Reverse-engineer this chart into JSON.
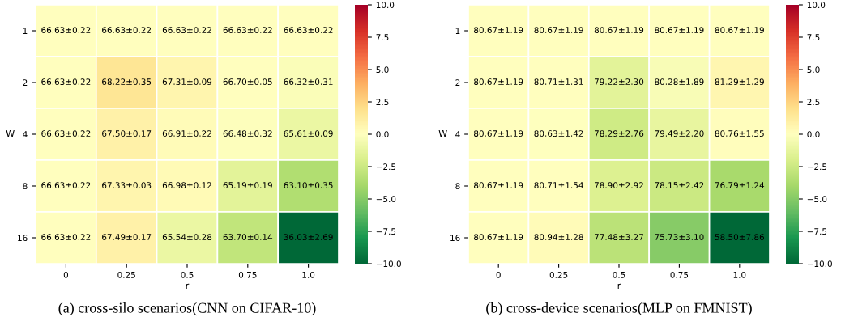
{
  "chart_data": [
    {
      "type": "heatmap",
      "title": "(a) cross-silo scenarios(CNN on CIFAR-10)",
      "xlabel": "r",
      "ylabel": "W",
      "categories": [
        "0",
        "0.25",
        "0.5",
        "0.75",
        "1.0"
      ],
      "y_categories": [
        "1",
        "2",
        "4",
        "8",
        "16"
      ],
      "cells": [
        [
          0,
          0,
          0,
          0,
          0
        ],
        [
          0,
          1.59,
          0.68,
          0.07,
          -0.31
        ],
        [
          0,
          0.87,
          0.28,
          -0.15,
          -1.02
        ],
        [
          0,
          0.7,
          0.35,
          -1.44,
          -3.53
        ],
        [
          0,
          0.86,
          -1.09,
          -2.93,
          -30.6
        ]
      ],
      "cell_labels": [
        [
          "66.63±0.22",
          "66.63±0.22",
          "66.63±0.22",
          "66.63±0.22",
          "66.63±0.22"
        ],
        [
          "66.63±0.22",
          "68.22±0.35",
          "67.31±0.09",
          "66.70±0.05",
          "66.32±0.31"
        ],
        [
          "66.63±0.22",
          "67.50±0.17",
          "66.91±0.22",
          "66.48±0.32",
          "65.61±0.09"
        ],
        [
          "66.63±0.22",
          "67.33±0.03",
          "66.98±0.12",
          "65.19±0.19",
          "63.10±0.35"
        ],
        [
          "66.63±0.22",
          "67.49±0.17",
          "65.54±0.28",
          "63.70±0.14",
          "36.03±2.69"
        ]
      ],
      "clim": [
        -10,
        10
      ],
      "cticks": [
        {
          "value": -10,
          "label": "−10.0"
        },
        {
          "value": -7.5,
          "label": "−7.5"
        },
        {
          "value": -5,
          "label": "−5.0"
        },
        {
          "value": -2.5,
          "label": "−2.5"
        },
        {
          "value": 0,
          "label": "0.0"
        },
        {
          "value": 2.5,
          "label": "2.5"
        },
        {
          "value": 5,
          "label": "5.0"
        },
        {
          "value": 7.5,
          "label": "7.5"
        },
        {
          "value": 10,
          "label": "10.0"
        }
      ]
    },
    {
      "type": "heatmap",
      "title": "(b) cross-device scenarios(MLP on FMNIST)",
      "xlabel": "r",
      "ylabel": "W",
      "categories": [
        "0",
        "0.25",
        "0.5",
        "0.75",
        "1.0"
      ],
      "y_categories": [
        "1",
        "2",
        "4",
        "8",
        "16"
      ],
      "cells": [
        [
          0,
          0,
          0,
          0,
          0
        ],
        [
          0,
          0.04,
          -1.45,
          -0.39,
          0.62
        ],
        [
          0,
          -0.04,
          -2.38,
          -1.18,
          0.09
        ],
        [
          0,
          0.04,
          -1.77,
          -2.52,
          -3.88
        ],
        [
          0,
          0.27,
          -3.19,
          -4.94,
          -22.17
        ]
      ],
      "cell_labels": [
        [
          "80.67±1.19",
          "80.67±1.19",
          "80.67±1.19",
          "80.67±1.19",
          "80.67±1.19"
        ],
        [
          "80.67±1.19",
          "80.71±1.31",
          "79.22±2.30",
          "80.28±1.89",
          "81.29±1.29"
        ],
        [
          "80.67±1.19",
          "80.63±1.42",
          "78.29±2.76",
          "79.49±2.20",
          "80.76±1.55"
        ],
        [
          "80.67±1.19",
          "80.71±1.54",
          "78.90±2.92",
          "78.15±2.42",
          "76.79±1.24"
        ],
        [
          "80.67±1.19",
          "80.94±1.28",
          "77.48±3.27",
          "75.73±3.10",
          "58.50±7.86"
        ]
      ],
      "clim": [
        -10,
        10
      ],
      "cticks": [
        {
          "value": -10,
          "label": "−10.0"
        },
        {
          "value": -7.5,
          "label": "−7.5"
        },
        {
          "value": -5,
          "label": "−5.0"
        },
        {
          "value": -2.5,
          "label": "−2.5"
        },
        {
          "value": 0,
          "label": "0.0"
        },
        {
          "value": 2.5,
          "label": "2.5"
        },
        {
          "value": 5,
          "label": "5.0"
        },
        {
          "value": 7.5,
          "label": "7.5"
        },
        {
          "value": 10,
          "label": "10.0"
        }
      ]
    }
  ]
}
